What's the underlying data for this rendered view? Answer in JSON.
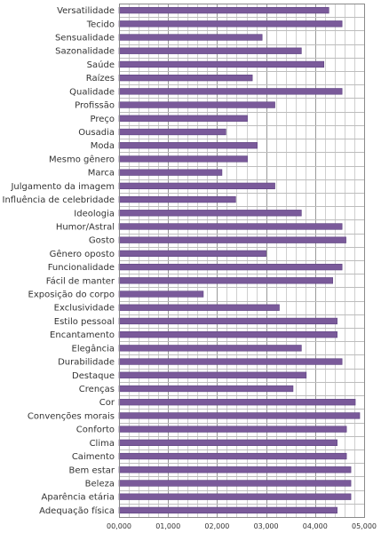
{
  "chart_data": {
    "type": "bar",
    "orientation": "horizontal",
    "categories": [
      "Versatilidade",
      "Tecido",
      "Sensualidade",
      "Sazonalidade",
      "Saúde",
      "Raízes",
      "Qualidade",
      "Profissão",
      "Preço",
      "Ousadia",
      "Moda",
      "Mesmo gênero",
      "Marca",
      "Julgamento da imagem",
      "Influência de celebridade",
      "Ideologia",
      "Humor/Astral",
      "Gosto",
      "Gênero oposto",
      "Funcionalidade",
      "Fácil de manter",
      "Exposição do corpo",
      "Exclusividade",
      "Estilo pessoal",
      "Encantamento",
      "Elegância",
      "Durabilidade",
      "Destaque",
      "Crenças",
      "Cor",
      "Convenções morais",
      "Conforto",
      "Clima",
      "Caimento",
      "Bem estar",
      "Beleza",
      "Aparência etária",
      "Adequação física"
    ],
    "values": [
      4.28,
      4.55,
      2.92,
      3.72,
      4.18,
      2.72,
      4.55,
      3.18,
      2.62,
      2.18,
      2.82,
      2.62,
      2.1,
      3.18,
      2.38,
      3.72,
      4.55,
      4.63,
      3.0,
      4.55,
      4.36,
      1.72,
      3.27,
      4.45,
      4.45,
      3.72,
      4.55,
      3.82,
      3.55,
      4.82,
      4.91,
      4.64,
      4.45,
      4.64,
      4.73,
      4.73,
      4.73,
      4.45
    ],
    "xlim": [
      0,
      5
    ],
    "xticks": [
      "00,000",
      "01,000",
      "02,000",
      "03,000",
      "04,000",
      "05,000"
    ],
    "minor_step": 0.2,
    "grid": true,
    "legend": "none",
    "colors": {
      "bar": "#7a5a9a",
      "bar_edge": "#5e4380"
    }
  }
}
